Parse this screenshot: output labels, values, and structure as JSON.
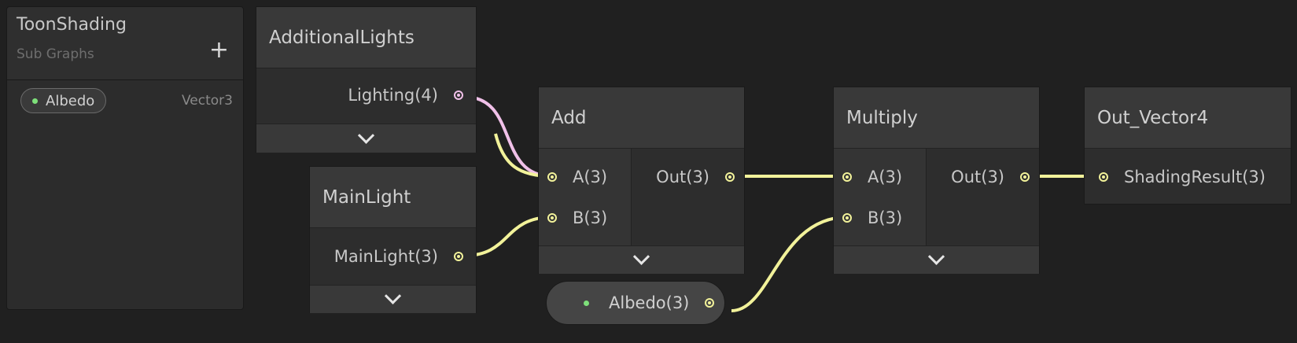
{
  "blackboard": {
    "title": "ToonShading",
    "subtitle": "Sub Graphs",
    "add_label": "+",
    "property": {
      "name": "Albedo",
      "type": "Vector3"
    }
  },
  "nodes": {
    "additional_lights": {
      "title": "AdditionalLights",
      "output": "Lighting(4)"
    },
    "main_light": {
      "title": "MainLight",
      "output": "MainLight(3)"
    },
    "add": {
      "title": "Add",
      "input_a": "A(3)",
      "input_b": "B(3)",
      "output": "Out(3)"
    },
    "multiply": {
      "title": "Multiply",
      "input_a": "A(3)",
      "input_b": "B(3)",
      "output": "Out(3)"
    },
    "out_vector4": {
      "title": "Out_Vector4",
      "input": "ShadingResult(3)"
    },
    "albedo_property": {
      "label": "Albedo(3)"
    }
  },
  "icons": {
    "collapse": "chevron-down-icon",
    "add": "plus-icon",
    "port": "port-socket-icon"
  },
  "colors": {
    "background": "#202020",
    "wire_vector3": "#f2f29a",
    "wire_vector4": "#f0c0e8",
    "property_dot": "#7ee07a"
  }
}
